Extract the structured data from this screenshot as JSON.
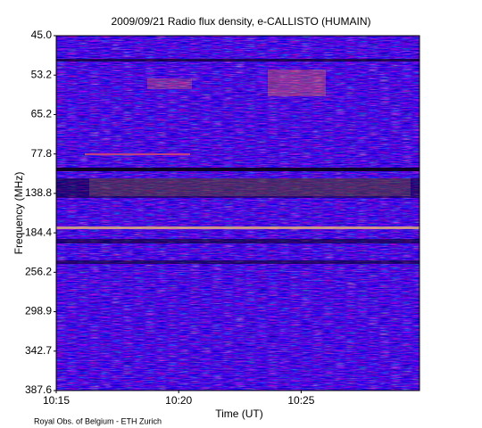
{
  "chart_data": {
    "type": "spectrogram",
    "title": "2009/09/21  Radio flux density, e-CALLISTO (HUMAIN)",
    "x_label": "Time (UT)",
    "y_label": "Frequency (MHz)",
    "xlim": [
      "10:15",
      "10:29:50"
    ],
    "xticks": [
      "10:15",
      "10:20",
      "10:25"
    ],
    "yticks": [
      {
        "value": 45.0,
        "label": "45.0"
      },
      53.2,
      65.2,
      77.8,
      138.8,
      184.4,
      256.2,
      298.9,
      342.7,
      387.6
    ],
    "credit": "Royal Obs. of Belgium - ETH Zurich"
  }
}
